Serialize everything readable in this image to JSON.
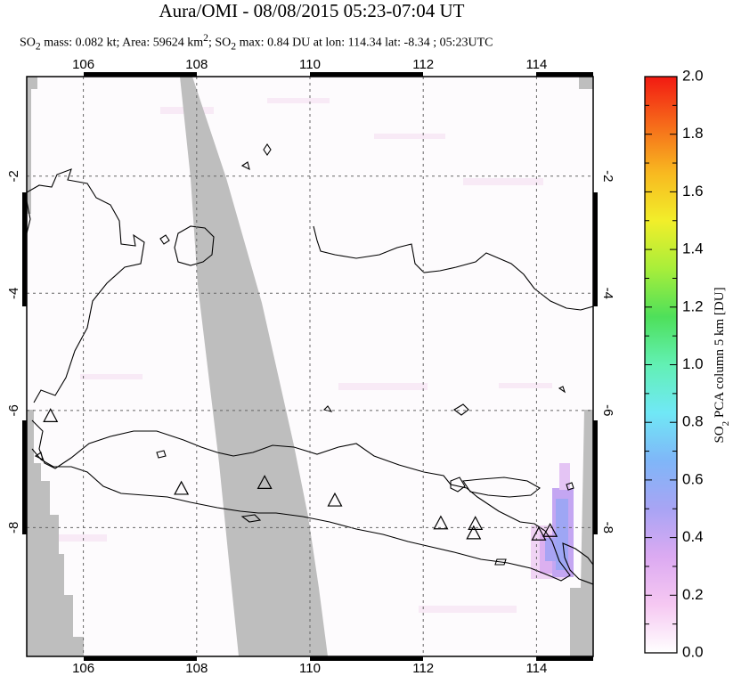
{
  "title": "Aura/OMI - 08/08/2015 05:23-07:04 UT",
  "subtitle": {
    "mass_prefix": "SO",
    "mass_sub": "2",
    "mass_text": " mass: 0.082 kt; Area: 59624 km",
    "area_sup": "2",
    "max_prefix": "; SO",
    "max_sub": "2",
    "max_text": " max: 0.84 DU at lon: 114.34 lat: -8.34 ; 05:23UTC"
  },
  "map": {
    "lon_range": [
      105.0,
      115.0
    ],
    "lat_range": [
      -10.2,
      -0.3
    ],
    "lon_ticks": [
      "106",
      "108",
      "110",
      "112",
      "114"
    ],
    "lon_values": [
      106,
      108,
      110,
      112,
      114
    ],
    "lat_ticks": [
      "-2",
      "-4",
      "-6",
      "-8"
    ],
    "lat_values": [
      -2,
      -4,
      -6,
      -8
    ],
    "grid": "dashed",
    "no_data_color": "#bebebe",
    "volcanoes": [
      {
        "lon": 105.42,
        "lat": -6.1
      },
      {
        "lon": 107.73,
        "lat": -7.34
      },
      {
        "lon": 109.2,
        "lat": -7.24
      },
      {
        "lon": 110.44,
        "lat": -7.54
      },
      {
        "lon": 112.31,
        "lat": -7.93
      },
      {
        "lon": 112.92,
        "lat": -7.94
      },
      {
        "lon": 112.89,
        "lat": -8.1
      },
      {
        "lon": 114.04,
        "lat": -8.12
      },
      {
        "lon": 114.24,
        "lat": -8.06
      }
    ]
  },
  "colorbar": {
    "title_prefix": "SO",
    "title_sub": "2",
    "title_text": " PCA column 5 km [DU]",
    "min": 0.0,
    "max": 2.0,
    "tick_labels": [
      "0.0",
      "0.2",
      "0.4",
      "0.6",
      "0.8",
      "1.0",
      "1.2",
      "1.4",
      "1.6",
      "1.8",
      "2.0"
    ],
    "colors": [
      "#ffffff",
      "#f6c8f2",
      "#dcaaf2",
      "#a8a4f4",
      "#7fb6f8",
      "#70e8f6",
      "#62f0b4",
      "#4ee05a",
      "#a8ee3a",
      "#f2ee2a",
      "#f8b820",
      "#f66a1a",
      "#f21a12"
    ]
  }
}
